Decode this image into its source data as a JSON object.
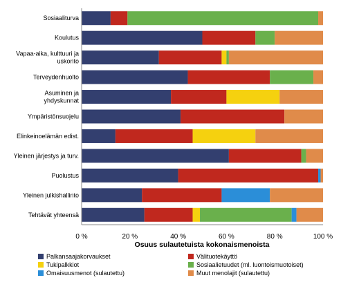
{
  "chart_data": {
    "type": "bar",
    "orientation": "horizontal",
    "stacked": true,
    "xlabel": "Osuus sulautetuista kokonaismenoista",
    "xlim": [
      0,
      100
    ],
    "xticks": [
      "0 %",
      "20 %",
      "40 %",
      "60 %",
      "80 %",
      "100 %"
    ],
    "grid": false,
    "legend_position": "bottom",
    "categories": [
      [
        "Sosiaaliturva"
      ],
      [
        "Koulutus"
      ],
      [
        "Vapaa-aika, kulttuuri ja",
        "uskonto"
      ],
      [
        "Terveydenhuolto"
      ],
      [
        "Asuminen ja",
        "yhdyskunnat"
      ],
      [
        "Ympäristönsuojelu"
      ],
      [
        "Elinkeinoelämän edist."
      ],
      [
        "Yleinen järjestys ja turv."
      ],
      [
        "Puolustus"
      ],
      [
        "Yleinen julkishallinto"
      ],
      [
        "Tehtävät yhteensä"
      ]
    ],
    "series": [
      {
        "name": "Palkansaajakorvaukset",
        "color": "#333f6f",
        "values": [
          12,
          50,
          32,
          44,
          37,
          41,
          14,
          61,
          40,
          25,
          26
        ]
      },
      {
        "name": "Välituotekäyttö",
        "color": "#c0281e",
        "values": [
          7,
          22,
          26,
          34,
          23,
          43,
          32,
          30,
          58,
          33,
          20
        ]
      },
      {
        "name": "Tukipalkkiot",
        "color": "#f5d10f",
        "values": [
          0,
          0,
          2,
          0,
          22,
          0,
          26,
          0,
          0,
          0,
          3
        ]
      },
      {
        "name": "Sosiaalietuudet (ml. luontoismuotoiset)",
        "color": "#6ab04c",
        "values": [
          79,
          8,
          1,
          18,
          0,
          0,
          0,
          2,
          0,
          0,
          38
        ]
      },
      {
        "name": "Omaisuusmenot (sulautettu)",
        "color": "#2b8ed8",
        "values": [
          0,
          0,
          0,
          0,
          0,
          0,
          0,
          0,
          1,
          20,
          2
        ]
      },
      {
        "name": "Muut menolajit (sulautettu)",
        "color": "#e08b4a",
        "values": [
          2,
          20,
          39,
          4,
          18,
          16,
          28,
          7,
          1,
          22,
          11
        ]
      }
    ]
  }
}
